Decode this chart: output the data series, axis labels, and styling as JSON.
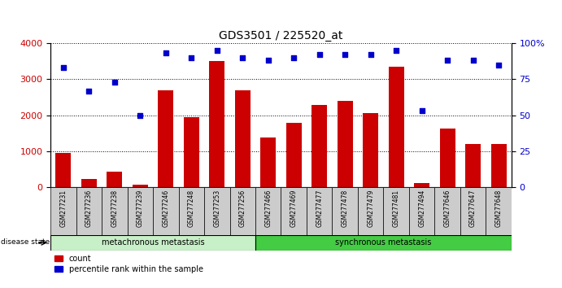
{
  "title": "GDS3501 / 225520_at",
  "samples": [
    "GSM277231",
    "GSM277236",
    "GSM277238",
    "GSM277239",
    "GSM277246",
    "GSM277248",
    "GSM277253",
    "GSM277256",
    "GSM277466",
    "GSM277469",
    "GSM277477",
    "GSM277478",
    "GSM277479",
    "GSM277481",
    "GSM277494",
    "GSM277646",
    "GSM277647",
    "GSM277648"
  ],
  "counts": [
    950,
    230,
    430,
    80,
    2700,
    1950,
    3500,
    2700,
    1380,
    1780,
    2290,
    2390,
    2050,
    3340,
    120,
    1640,
    1190,
    1200
  ],
  "percentiles": [
    83,
    67,
    73,
    50,
    93,
    90,
    95,
    90,
    88,
    90,
    92,
    92,
    92,
    95,
    53,
    88,
    88,
    85
  ],
  "group1_label": "metachronous metastasis",
  "group1_count": 8,
  "group2_label": "synchronous metastasis",
  "group2_count": 10,
  "bar_color": "#cc0000",
  "dot_color": "#0000cc",
  "left_yticks": [
    0,
    1000,
    2000,
    3000,
    4000
  ],
  "right_yticks": [
    0,
    25,
    50,
    75,
    100
  ],
  "ylim_left": [
    0,
    4000
  ],
  "ylim_right": [
    0,
    100
  ],
  "group1_bg": "#c8f0c8",
  "group2_bg": "#44cc44",
  "xticklabel_bg": "#cccccc",
  "legend_red_label": "count",
  "legend_blue_label": "percentile rank within the sample"
}
